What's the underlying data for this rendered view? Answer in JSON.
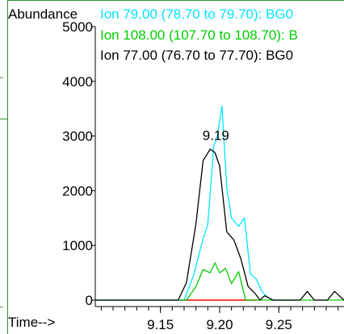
{
  "chart_data": {
    "type": "line",
    "ylabel": "Abundance",
    "xlabel": "Time-->",
    "ylim": [
      0,
      5000
    ],
    "xlim": [
      9.095,
      9.305
    ],
    "y_ticks": [
      0,
      1000,
      2000,
      3000,
      4000,
      5000
    ],
    "y_tick_labels": [
      "0",
      "1000",
      "2000",
      "3000",
      "4000",
      "5000"
    ],
    "x_tick_labels": [
      {
        "value": 9.15,
        "label": "9.15"
      },
      {
        "value": 9.2,
        "label": "9.20"
      },
      {
        "value": 9.25,
        "label": "9.25"
      }
    ],
    "x_minor_ticks": [
      9.1,
      9.11,
      9.12,
      9.13,
      9.14,
      9.15,
      9.16,
      9.17,
      9.18,
      9.19,
      9.2,
      9.21,
      9.22,
      9.23,
      9.24,
      9.25,
      9.26,
      9.27,
      9.28,
      9.29,
      9.3
    ],
    "legend_placement": "top",
    "peak_label": {
      "text": "9.19",
      "x": 9.19,
      "y": 2750
    },
    "colors": {
      "ion79": "#000000",
      "ion108": "#00cc00",
      "ion77": "#00e5ff",
      "baseline": "#ff0000",
      "frame": "#2e8b2e"
    },
    "series": [
      {
        "name": "Ion  79.00 (78.70 to 79.70): BG0",
        "color": "#00e5ff",
        "x": [
          9.095,
          9.17,
          9.178,
          9.186,
          9.19,
          9.195,
          9.198,
          9.202,
          9.206,
          9.21,
          9.216,
          9.221,
          9.226,
          9.231,
          9.236,
          9.24,
          9.245,
          9.25
        ],
        "values": [
          0,
          0,
          450,
          1120,
          1380,
          2820,
          3000,
          3550,
          2050,
          1500,
          1350,
          1500,
          480,
          380,
          150,
          60,
          0,
          0
        ]
      },
      {
        "name": "Ion 108.00 (107.70 to 108.70): B",
        "color": "#00cc00",
        "x": [
          9.095,
          9.172,
          9.18,
          9.186,
          9.192,
          9.196,
          9.2,
          9.205,
          9.21,
          9.216,
          9.222,
          9.23,
          9.235,
          9.305
        ],
        "values": [
          0,
          0,
          250,
          560,
          500,
          680,
          500,
          580,
          300,
          520,
          0,
          0,
          0,
          0
        ]
      },
      {
        "name": "Ion  77.00 (76.70 to 77.70): BG0",
        "color": "#000000",
        "x": [
          9.095,
          9.165,
          9.172,
          9.18,
          9.186,
          9.192,
          9.196,
          9.2,
          9.206,
          9.212,
          9.218,
          9.224,
          9.23,
          9.234,
          9.238,
          9.245,
          9.255,
          9.268,
          9.274,
          9.28,
          9.285,
          9.291,
          9.297,
          9.305
        ],
        "values": [
          0,
          0,
          320,
          1400,
          2550,
          2760,
          2700,
          2450,
          1250,
          1100,
          750,
          250,
          120,
          0,
          80,
          0,
          0,
          0,
          160,
          0,
          0,
          0,
          160,
          0
        ]
      },
      {
        "color": "#ff0000",
        "x": [
          9.165,
          9.232
        ],
        "values": [
          0,
          0
        ]
      }
    ]
  }
}
